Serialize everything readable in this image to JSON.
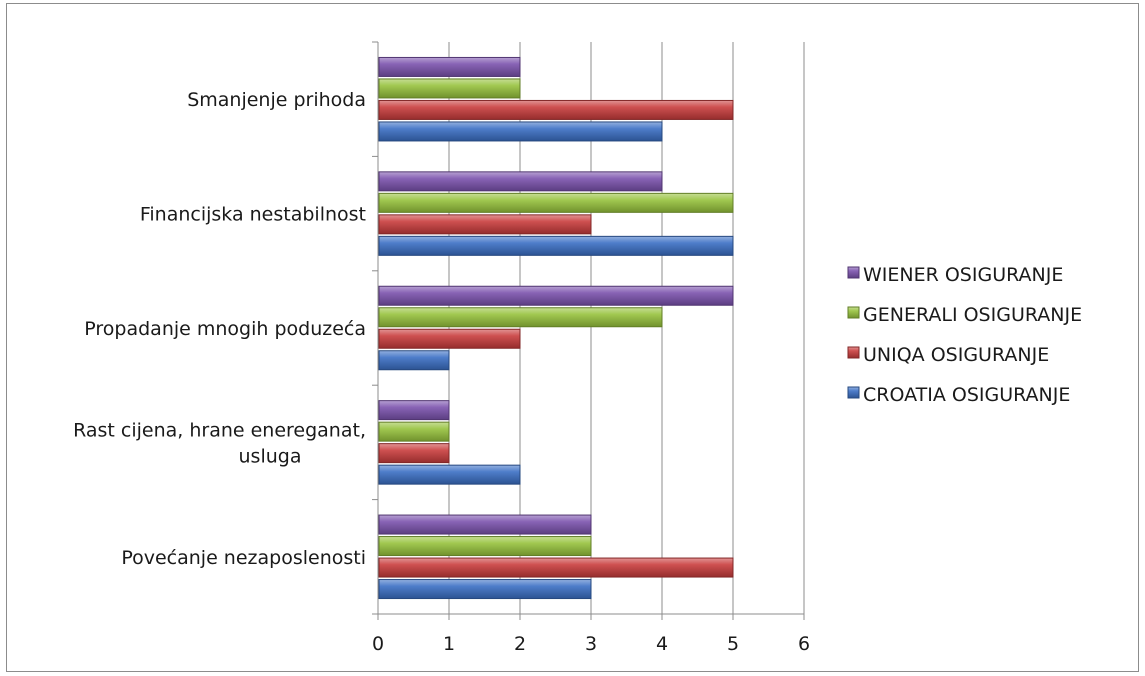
{
  "chart_data": {
    "type": "bar",
    "orientation": "horizontal",
    "categories": [
      [
        "Povećanje nezaposlenosti"
      ],
      [
        "Rast cijena, hrane enereganat,",
        "usluga"
      ],
      [
        "Propadanje mnogih poduzeća"
      ],
      [
        "Financijska nestabilnost"
      ],
      [
        "Smanjenje prihoda"
      ]
    ],
    "series": [
      {
        "name": "CROATIA OSIGURANJE",
        "values": [
          3,
          2,
          1,
          5,
          4
        ],
        "color": "#3a6fc4"
      },
      {
        "name": "UNIQA OSIGURANJE",
        "values": [
          5,
          1,
          2,
          3,
          5
        ],
        "color": "#c83c3c"
      },
      {
        "name": "GENERALI OSIGURANJE",
        "values": [
          3,
          1,
          4,
          5,
          2
        ],
        "color": "#97c23c"
      },
      {
        "name": "WIENER OSIGURANJE",
        "values": [
          3,
          1,
          5,
          4,
          2
        ],
        "color": "#7b52ad"
      }
    ],
    "xticks": [
      "0",
      "1",
      "2",
      "3",
      "4",
      "5",
      "6"
    ],
    "xlim": [
      0,
      6
    ],
    "grid": true,
    "legend": "right",
    "title": "",
    "xlabel": "",
    "ylabel": ""
  }
}
